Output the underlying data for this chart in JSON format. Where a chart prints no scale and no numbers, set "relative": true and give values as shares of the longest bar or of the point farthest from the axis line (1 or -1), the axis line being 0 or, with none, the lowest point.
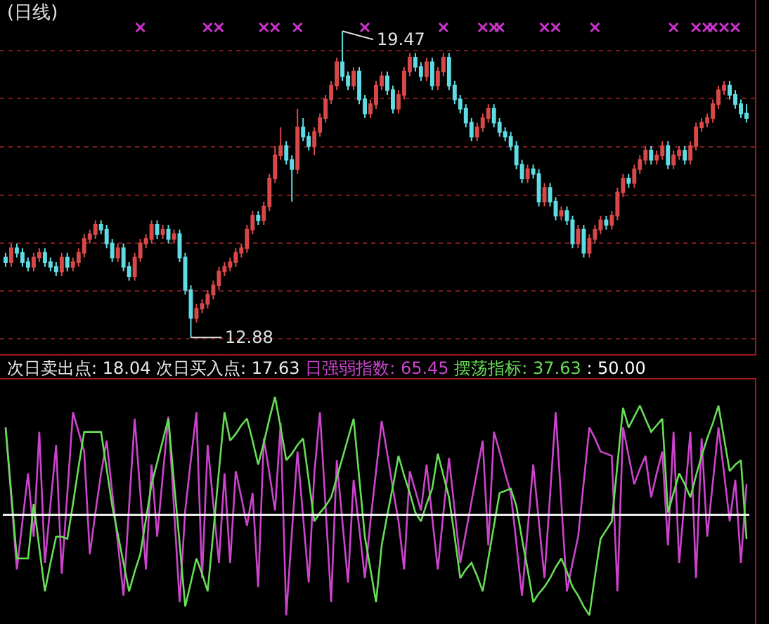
{
  "chart_data": [
    {
      "type": "candlestick",
      "title": "(日线)",
      "categories": [
        null,
        null,
        null,
        null,
        null,
        null,
        null,
        null,
        null,
        null,
        null,
        null,
        null,
        null,
        null,
        null,
        null,
        null,
        null,
        null,
        null,
        null,
        null,
        null,
        null,
        null,
        null,
        null,
        null,
        null,
        null,
        null,
        null,
        null,
        null,
        null,
        null,
        null,
        null,
        null,
        null,
        null,
        null,
        null,
        null,
        null,
        null,
        null,
        null,
        null,
        null,
        null,
        null,
        null,
        null,
        null,
        null,
        null,
        null,
        null,
        null,
        null,
        null,
        null,
        null,
        null,
        null,
        null,
        null,
        null,
        null,
        null,
        null,
        null,
        null,
        null,
        null,
        null,
        null,
        null,
        null,
        null,
        null,
        null,
        null,
        null,
        null,
        null,
        null,
        null,
        null,
        null,
        null,
        null,
        null,
        null,
        null,
        null,
        null,
        null,
        null,
        null,
        null,
        null,
        null,
        null,
        null,
        null,
        null,
        null,
        null,
        null,
        null,
        null,
        null,
        null,
        null,
        null,
        null,
        null,
        null,
        null,
        null,
        null,
        null,
        null,
        null,
        null,
        null,
        null,
        null,
        null,
        null
      ],
      "ylim": [
        12.52,
        20.14
      ],
      "yticks": [
        {
          "value": 19.05,
          "label": null
        },
        {
          "value": 18.02,
          "label": null
        },
        {
          "value": 16.98,
          "label": null
        },
        {
          "value": 15.94,
          "label": null
        },
        {
          "value": 14.91,
          "label": null
        },
        {
          "value": 13.88,
          "label": null
        },
        {
          "value": 12.85,
          "label": null
        }
      ],
      "grid": "y",
      "ohlc": [
        [
          14.6,
          14.7,
          14.4,
          14.5
        ],
        [
          14.5,
          14.9,
          14.4,
          14.8
        ],
        [
          14.8,
          14.9,
          14.6,
          14.7
        ],
        [
          14.7,
          14.8,
          14.4,
          14.5
        ],
        [
          14.5,
          14.6,
          14.3,
          14.4
        ],
        [
          14.4,
          14.7,
          14.3,
          14.6
        ],
        [
          14.6,
          14.8,
          14.5,
          14.7
        ],
        [
          14.7,
          14.8,
          14.4,
          14.5
        ],
        [
          14.5,
          14.6,
          14.3,
          14.4
        ],
        [
          14.4,
          14.5,
          14.2,
          14.3
        ],
        [
          14.3,
          14.7,
          14.2,
          14.6
        ],
        [
          14.6,
          14.7,
          14.3,
          14.4
        ],
        [
          14.4,
          14.6,
          14.3,
          14.5
        ],
        [
          14.5,
          14.8,
          14.4,
          14.7
        ],
        [
          14.7,
          15.1,
          14.6,
          15.0
        ],
        [
          15.0,
          15.2,
          14.9,
          15.1
        ],
        [
          15.1,
          15.4,
          15.0,
          15.3
        ],
        [
          15.3,
          15.4,
          15.1,
          15.2
        ],
        [
          15.2,
          15.3,
          14.8,
          14.9
        ],
        [
          14.9,
          15.0,
          14.5,
          14.6
        ],
        [
          14.6,
          14.9,
          14.5,
          14.8
        ],
        [
          14.8,
          14.9,
          14.3,
          14.4
        ],
        [
          14.4,
          14.5,
          14.1,
          14.2
        ],
        [
          14.2,
          14.7,
          14.1,
          14.6
        ],
        [
          14.6,
          15.0,
          14.5,
          14.9
        ],
        [
          14.9,
          15.1,
          14.8,
          15.0
        ],
        [
          15.0,
          15.4,
          14.9,
          15.3
        ],
        [
          15.3,
          15.4,
          15.0,
          15.1
        ],
        [
          15.1,
          15.3,
          15.0,
          15.2
        ],
        [
          15.2,
          15.3,
          14.9,
          15.0
        ],
        [
          15.0,
          15.2,
          14.9,
          15.1
        ],
        [
          15.1,
          15.2,
          14.5,
          14.6
        ],
        [
          14.6,
          14.7,
          13.8,
          13.9
        ],
        [
          13.9,
          14.0,
          12.88,
          13.3
        ],
        [
          13.3,
          13.6,
          13.2,
          13.5
        ],
        [
          13.5,
          13.7,
          13.4,
          13.6
        ],
        [
          13.6,
          13.9,
          13.5,
          13.8
        ],
        [
          13.8,
          14.1,
          13.7,
          14.0
        ],
        [
          14.0,
          14.4,
          13.9,
          14.3
        ],
        [
          14.3,
          14.5,
          14.2,
          14.4
        ],
        [
          14.4,
          14.6,
          14.3,
          14.5
        ],
        [
          14.5,
          14.8,
          14.4,
          14.7
        ],
        [
          14.7,
          14.9,
          14.6,
          14.8
        ],
        [
          14.8,
          15.3,
          14.7,
          15.2
        ],
        [
          15.2,
          15.6,
          15.1,
          15.5
        ],
        [
          15.5,
          15.6,
          15.3,
          15.4
        ],
        [
          15.4,
          15.8,
          15.3,
          15.7
        ],
        [
          15.7,
          16.4,
          15.6,
          16.3
        ],
        [
          16.3,
          17.0,
          16.2,
          16.8
        ],
        [
          16.8,
          17.4,
          16.7,
          17.0
        ],
        [
          17.0,
          17.1,
          16.6,
          16.7
        ],
        [
          16.7,
          16.8,
          15.8,
          16.5
        ],
        [
          16.5,
          17.8,
          16.4,
          17.4
        ],
        [
          17.4,
          17.6,
          17.1,
          17.2
        ],
        [
          17.2,
          17.3,
          16.9,
          17.0
        ],
        [
          17.0,
          17.4,
          16.8,
          17.3
        ],
        [
          17.3,
          17.7,
          17.2,
          17.6
        ],
        [
          17.6,
          18.1,
          17.5,
          18.0
        ],
        [
          18.0,
          18.4,
          17.9,
          18.3
        ],
        [
          18.3,
          18.9,
          18.2,
          18.8
        ],
        [
          18.8,
          19.47,
          18.4,
          18.5
        ],
        [
          18.5,
          18.6,
          18.2,
          18.3
        ],
        [
          18.3,
          18.7,
          18.2,
          18.6
        ],
        [
          18.6,
          18.7,
          17.9,
          18.0
        ],
        [
          18.0,
          18.1,
          17.6,
          17.7
        ],
        [
          17.7,
          18.0,
          17.6,
          17.9
        ],
        [
          17.9,
          18.4,
          17.8,
          18.3
        ],
        [
          18.3,
          18.6,
          18.2,
          18.5
        ],
        [
          18.5,
          18.6,
          18.1,
          18.2
        ],
        [
          18.2,
          18.3,
          17.7,
          17.8
        ],
        [
          17.8,
          18.2,
          17.7,
          18.1
        ],
        [
          18.1,
          18.7,
          18.0,
          18.6
        ],
        [
          18.6,
          19.0,
          18.5,
          18.9
        ],
        [
          18.9,
          19.0,
          18.6,
          18.7
        ],
        [
          18.7,
          18.8,
          18.4,
          18.5
        ],
        [
          18.5,
          18.9,
          18.4,
          18.8
        ],
        [
          18.8,
          18.9,
          18.2,
          18.3
        ],
        [
          18.3,
          18.7,
          18.2,
          18.6
        ],
        [
          18.6,
          19.0,
          18.5,
          18.9
        ],
        [
          18.9,
          19.0,
          18.2,
          18.3
        ],
        [
          18.3,
          18.4,
          17.9,
          18.0
        ],
        [
          18.0,
          18.1,
          17.7,
          17.8
        ],
        [
          17.8,
          17.9,
          17.4,
          17.5
        ],
        [
          17.5,
          17.6,
          17.1,
          17.2
        ],
        [
          17.2,
          17.5,
          17.1,
          17.4
        ],
        [
          17.4,
          17.7,
          17.3,
          17.6
        ],
        [
          17.6,
          17.9,
          17.5,
          17.8
        ],
        [
          17.8,
          17.9,
          17.4,
          17.5
        ],
        [
          17.5,
          17.6,
          17.2,
          17.3
        ],
        [
          17.3,
          17.4,
          17.1,
          17.2
        ],
        [
          17.2,
          17.3,
          16.9,
          17.0
        ],
        [
          17.0,
          17.1,
          16.5,
          16.6
        ],
        [
          16.6,
          16.7,
          16.2,
          16.3
        ],
        [
          16.3,
          16.6,
          16.2,
          16.5
        ],
        [
          16.5,
          16.6,
          16.3,
          16.4
        ],
        [
          16.4,
          16.5,
          15.7,
          15.8
        ],
        [
          15.8,
          16.2,
          15.7,
          16.1
        ],
        [
          16.1,
          16.2,
          15.7,
          15.8
        ],
        [
          15.8,
          15.9,
          15.4,
          15.5
        ],
        [
          15.5,
          15.7,
          15.4,
          15.6
        ],
        [
          15.6,
          15.7,
          15.3,
          15.4
        ],
        [
          15.4,
          15.5,
          14.8,
          14.9
        ],
        [
          14.9,
          15.3,
          14.8,
          15.2
        ],
        [
          15.2,
          15.3,
          14.6,
          14.7
        ],
        [
          14.7,
          15.1,
          14.6,
          15.0
        ],
        [
          15.0,
          15.3,
          14.9,
          15.2
        ],
        [
          15.2,
          15.5,
          15.1,
          15.4
        ],
        [
          15.4,
          15.5,
          15.2,
          15.3
        ],
        [
          15.3,
          15.6,
          15.2,
          15.5
        ],
        [
          15.5,
          16.1,
          15.4,
          16.0
        ],
        [
          16.0,
          16.4,
          15.9,
          16.3
        ],
        [
          16.3,
          16.4,
          16.1,
          16.2
        ],
        [
          16.2,
          16.6,
          16.1,
          16.5
        ],
        [
          16.5,
          16.8,
          16.4,
          16.7
        ],
        [
          16.7,
          17.0,
          16.6,
          16.9
        ],
        [
          16.9,
          17.0,
          16.6,
          16.7
        ],
        [
          16.7,
          16.9,
          16.6,
          16.8
        ],
        [
          16.8,
          17.1,
          16.7,
          17.0
        ],
        [
          17.0,
          17.1,
          16.5,
          16.6
        ],
        [
          16.6,
          16.9,
          16.5,
          16.8
        ],
        [
          16.8,
          17.0,
          16.7,
          16.9
        ],
        [
          16.9,
          17.0,
          16.6,
          16.7
        ],
        [
          16.7,
          17.1,
          16.6,
          17.0
        ],
        [
          17.0,
          17.5,
          16.9,
          17.4
        ],
        [
          17.4,
          17.6,
          17.3,
          17.5
        ],
        [
          17.5,
          17.7,
          17.4,
          17.6
        ],
        [
          17.6,
          18.0,
          17.5,
          17.9
        ],
        [
          17.9,
          18.3,
          17.8,
          18.2
        ],
        [
          18.2,
          18.4,
          18.1,
          18.3
        ],
        [
          18.3,
          18.4,
          18.0,
          18.1
        ],
        [
          18.1,
          18.2,
          17.8,
          17.9
        ],
        [
          17.9,
          18.0,
          17.6,
          17.7
        ],
        [
          17.7,
          17.9,
          17.5,
          17.6
        ]
      ],
      "series": [
        {
          "type": "scatter",
          "marker": "cross",
          "color": "#cc33cc",
          "values": [
            null,
            null,
            null,
            null,
            null,
            null,
            null,
            null,
            null,
            null,
            null,
            null,
            null,
            null,
            null,
            null,
            null,
            null,
            null,
            null,
            null,
            null,
            null,
            null,
            19.55,
            null,
            null,
            null,
            null,
            null,
            null,
            null,
            null,
            null,
            null,
            null,
            19.55,
            null,
            19.55,
            null,
            null,
            null,
            null,
            null,
            null,
            null,
            19.55,
            null,
            19.55,
            null,
            null,
            null,
            19.55,
            null,
            null,
            null,
            null,
            null,
            null,
            null,
            null,
            null,
            null,
            null,
            19.55,
            null,
            null,
            null,
            null,
            null,
            null,
            null,
            null,
            null,
            null,
            null,
            null,
            null,
            19.55,
            null,
            null,
            null,
            null,
            null,
            null,
            19.55,
            null,
            19.55,
            19.55,
            null,
            null,
            null,
            null,
            null,
            null,
            null,
            19.55,
            null,
            19.55,
            null,
            null,
            null,
            null,
            null,
            null,
            19.55,
            null,
            null,
            null,
            null,
            null,
            null,
            null,
            null,
            null,
            null,
            null,
            null,
            null,
            19.55,
            null,
            null,
            null,
            19.55,
            null,
            19.55,
            19.55,
            null,
            19.55,
            null,
            19.55,
            null,
            null
          ]
        }
      ],
      "annotations": [
        "19.47",
        "12.88"
      ]
    },
    {
      "type": "line",
      "categories": [
        null,
        null,
        null,
        null,
        null,
        null,
        null,
        null,
        null,
        null,
        null,
        null,
        null,
        null,
        null,
        null,
        null,
        null,
        null,
        null,
        null,
        null,
        null,
        null,
        null,
        null,
        null,
        null,
        null,
        null,
        null,
        null,
        null,
        null,
        null,
        null,
        null,
        null,
        null,
        null,
        null,
        null,
        null,
        null,
        null,
        null,
        null,
        null,
        null,
        null,
        null,
        null,
        null,
        null,
        null,
        null,
        null,
        null,
        null,
        null,
        null,
        null,
        null,
        null,
        null,
        null,
        null,
        null,
        null,
        null,
        null,
        null,
        null,
        null,
        null,
        null,
        null,
        null,
        null,
        null,
        null,
        null,
        null,
        null,
        null,
        null,
        null,
        null,
        null,
        null,
        null,
        null,
        null,
        null,
        null,
        null,
        null,
        null,
        null,
        null,
        null,
        null,
        null,
        null,
        null,
        null,
        null,
        null,
        null,
        null,
        null,
        null,
        null,
        null,
        null,
        null,
        null,
        null,
        null,
        null,
        null,
        null,
        null,
        null,
        null,
        null,
        null,
        null,
        null,
        null,
        null,
        null,
        null
      ],
      "relative": true,
      "annotations": [
        "次日卖出点: 18.04",
        "次日买入点: 17.63",
        ": 65.45",
        ": 37.63",
        ": 50.00"
      ],
      "ref_lines": [
        {
          "axis": "y",
          "value": 0.46,
          "color": "#ffffff"
        }
      ],
      "series": [
        {
          "name": "日强弱指数",
          "color": "#cc44cc",
          "values": [
            0.86,
            0.54,
            0.21,
            0.43,
            0.65,
            0.36,
            0.84,
            0.24,
            0.51,
            0.78,
            0.19,
            0.56,
            0.93,
            0.84,
            0.75,
            0.28,
            0.47,
            0.65,
            0.8,
            0.56,
            0.33,
            0.09,
            0.5,
            0.9,
            0.56,
            0.21,
            0.69,
            0.36,
            0.64,
            0.91,
            0.49,
            0.06,
            0.48,
            0.71,
            0.93,
            0.17,
            0.78,
            0.51,
            0.24,
            0.65,
            0.24,
            0.66,
            0.54,
            0.41,
            0.56,
            0.13,
            0.81,
            0.65,
            0.48,
            0.88,
            0,
            0.38,
            0.75,
            0.45,
            0.15,
            0.65,
            0.93,
            0.5,
            0.06,
            0.71,
            0.43,
            0.15,
            0.62,
            0.4,
            0.17,
            0.43,
            0.66,
            0.89,
            0.74,
            0.58,
            0.43,
            0.21,
            0.66,
            0.57,
            0.48,
            0.69,
            0.45,
            0.21,
            0.47,
            0.72,
            0.48,
            0.24,
            0.38,
            0.52,
            0.66,
            0.8,
            0.32,
            0.84,
            0.75,
            0.65,
            0.56,
            0.33,
            0.09,
            0.39,
            0.69,
            0.43,
            0.17,
            0.55,
            0.93,
            0.52,
            0.11,
            0.24,
            0.36,
            0.61,
            0.86,
            0.81,
            0.75,
            0.74,
            0.73,
            0.11,
            0.86,
            0.73,
            0.6,
            0.67,
            0.73,
            0.54,
            0.65,
            0.75,
            0.32,
            0.84,
            0.24,
            0.54,
            0.84,
            0.17,
            0.81,
            0.36,
            0.61,
            0.86,
            0.65,
            0.43,
            0.62,
            0.24,
            0.6
          ]
        },
        {
          "name": "摆荡指标",
          "color": "#66dd55",
          "values": [
            0.86,
            0.56,
            0.26,
            0.26,
            0.26,
            0.51,
            0.31,
            0.11,
            0.24,
            0.36,
            0.36,
            0.35,
            0.51,
            0.68,
            0.84,
            0.84,
            0.84,
            0.84,
            0.67,
            0.5,
            0.37,
            0.24,
            0.11,
            0.2,
            0.28,
            0.44,
            0.6,
            0.7,
            0.8,
            0.9,
            0.61,
            0.33,
            0.04,
            0.15,
            0.26,
            0.19,
            0.11,
            0.38,
            0.66,
            0.93,
            0.8,
            0.83,
            0.87,
            0.9,
            0.8,
            0.69,
            0.79,
            0.9,
            1,
            0.86,
            0.71,
            0.74,
            0.78,
            0.81,
            0.62,
            0.43,
            0.47,
            0.5,
            0.54,
            0.63,
            0.72,
            0.81,
            0.9,
            0.63,
            0.36,
            0.21,
            0.06,
            0.32,
            0.46,
            0.59,
            0.73,
            0.64,
            0.56,
            0.47,
            0.43,
            0.51,
            0.58,
            0.74,
            0.64,
            0.54,
            0.36,
            0.17,
            0.21,
            0.24,
            0.18,
            0.11,
            0.26,
            0.41,
            0.56,
            0.57,
            0.58,
            0.5,
            0.35,
            0.21,
            0.06,
            0.1,
            0.13,
            0.17,
            0.22,
            0.26,
            0.2,
            0.13,
            0.09,
            0.04,
            0,
            0.18,
            0.35,
            0.39,
            0.43,
            0.69,
            0.95,
            0.86,
            0.91,
            0.96,
            0.9,
            0.84,
            0.87,
            0.9,
            0.47,
            0.56,
            0.65,
            0.6,
            0.54,
            0.64,
            0.73,
            0.81,
            0.88,
            0.96,
            0.81,
            0.66,
            0.69,
            0.71,
            0.35
          ]
        }
      ]
    }
  ]
}
